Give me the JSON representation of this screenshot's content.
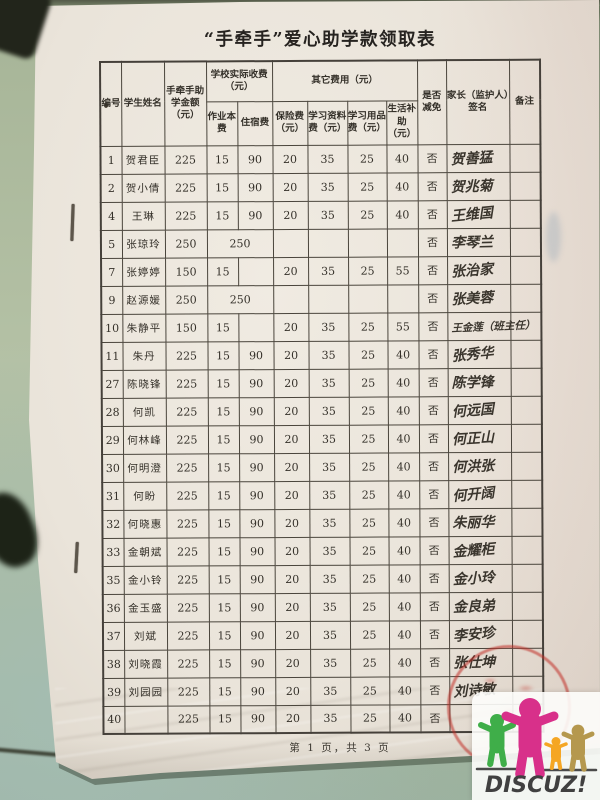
{
  "photo": {
    "title": "“手牵手”爱心助学款领取表",
    "footer": "第 1 页，共 3 页",
    "paper_color": "#eae4da",
    "background_color": "#b4c1a5",
    "stamp_color": "#c12e26",
    "watermark": {
      "text": "DISCUZ!",
      "text_color": "#404040",
      "figure_colors": [
        "#3fae49",
        "#d8308a",
        "#f5a623",
        "#b5984e"
      ]
    }
  },
  "table": {
    "headers": {
      "no": "编号",
      "student_name": "学生姓名",
      "aid_amount": "手牵手助学金额（元）",
      "school_fee_group": "学校实际收费（元）",
      "workbook_fee": "作业本费",
      "lodging_fee": "住宿费",
      "other_fee_group": "其它费用（元）",
      "insurance_fee": "保险费（元）",
      "materials_fee": "学习资料费（元）",
      "supplies_fee": "学习用品费（元）",
      "living_subsidy": "生活补助（元）",
      "waived": "是否减免",
      "guardian_signature": "家长（监护人）签名",
      "remarks": "备注"
    },
    "rows": [
      {
        "no": "1",
        "name": "贺君臣",
        "amount": "225",
        "workbook": "15",
        "lodging": "90",
        "insurance": "20",
        "materials": "35",
        "supplies": "25",
        "living": "40",
        "waived": "否",
        "signature": "贺善猛",
        "remark": ""
      },
      {
        "no": "2",
        "name": "贺小倩",
        "amount": "225",
        "workbook": "15",
        "lodging": "90",
        "insurance": "20",
        "materials": "35",
        "supplies": "25",
        "living": "40",
        "waived": "否",
        "signature": "贺兆菊",
        "remark": ""
      },
      {
        "no": "4",
        "name": "王琳",
        "amount": "225",
        "workbook": "15",
        "lodging": "90",
        "insurance": "20",
        "materials": "35",
        "supplies": "25",
        "living": "40",
        "waived": "否",
        "signature": "王维国",
        "remark": ""
      },
      {
        "no": "5",
        "name": "张琼玲",
        "amount": "250",
        "school_fee_merged": true,
        "school_fee": "250",
        "insurance": "",
        "materials": "",
        "supplies": "",
        "living": "",
        "waived": "否",
        "signature": "李琴兰",
        "remark": ""
      },
      {
        "no": "7",
        "name": "张婷婷",
        "amount": "150",
        "workbook": "15",
        "lodging": "",
        "insurance": "20",
        "materials": "35",
        "supplies": "25",
        "living": "55",
        "waived": "否",
        "signature": "张治家",
        "remark": ""
      },
      {
        "no": "9",
        "name": "赵源媛",
        "amount": "250",
        "school_fee_merged": true,
        "school_fee": "250",
        "insurance": "",
        "materials": "",
        "supplies": "",
        "living": "",
        "waived": "否",
        "signature": "张美蓉",
        "remark": ""
      },
      {
        "no": "10",
        "name": "朱静平",
        "amount": "150",
        "workbook": "15",
        "lodging": "",
        "insurance": "20",
        "materials": "35",
        "supplies": "25",
        "living": "55",
        "waived": "否",
        "signature": "王金莲（班主任）",
        "remark": ""
      },
      {
        "no": "11",
        "name": "朱丹",
        "amount": "225",
        "workbook": "15",
        "lodging": "90",
        "insurance": "20",
        "materials": "35",
        "supplies": "25",
        "living": "40",
        "waived": "否",
        "signature": "张秀华",
        "remark": ""
      },
      {
        "no": "27",
        "name": "陈晓锋",
        "amount": "225",
        "workbook": "15",
        "lodging": "90",
        "insurance": "20",
        "materials": "35",
        "supplies": "25",
        "living": "40",
        "waived": "否",
        "signature": "陈学锋",
        "remark": ""
      },
      {
        "no": "28",
        "name": "何凯",
        "amount": "225",
        "workbook": "15",
        "lodging": "90",
        "insurance": "20",
        "materials": "35",
        "supplies": "25",
        "living": "40",
        "waived": "否",
        "signature": "何远国",
        "remark": ""
      },
      {
        "no": "29",
        "name": "何林峰",
        "amount": "225",
        "workbook": "15",
        "lodging": "90",
        "insurance": "20",
        "materials": "35",
        "supplies": "25",
        "living": "40",
        "waived": "否",
        "signature": "何正山",
        "remark": ""
      },
      {
        "no": "30",
        "name": "何明澄",
        "amount": "225",
        "workbook": "15",
        "lodging": "90",
        "insurance": "20",
        "materials": "35",
        "supplies": "25",
        "living": "40",
        "waived": "否",
        "signature": "何洪张",
        "remark": ""
      },
      {
        "no": "31",
        "name": "何盼",
        "amount": "225",
        "workbook": "15",
        "lodging": "90",
        "insurance": "20",
        "materials": "35",
        "supplies": "25",
        "living": "40",
        "waived": "否",
        "signature": "何开阔",
        "remark": ""
      },
      {
        "no": "32",
        "name": "何晓惠",
        "amount": "225",
        "workbook": "15",
        "lodging": "90",
        "insurance": "20",
        "materials": "35",
        "supplies": "25",
        "living": "40",
        "waived": "否",
        "signature": "朱丽华",
        "remark": ""
      },
      {
        "no": "33",
        "name": "金朝斌",
        "amount": "225",
        "workbook": "15",
        "lodging": "90",
        "insurance": "20",
        "materials": "35",
        "supplies": "25",
        "living": "40",
        "waived": "否",
        "signature": "金耀柜",
        "remark": ""
      },
      {
        "no": "35",
        "name": "金小铃",
        "amount": "225",
        "workbook": "15",
        "lodging": "90",
        "insurance": "20",
        "materials": "35",
        "supplies": "25",
        "living": "40",
        "waived": "否",
        "signature": "金小玲",
        "remark": ""
      },
      {
        "no": "36",
        "name": "金玉盛",
        "amount": "225",
        "workbook": "15",
        "lodging": "90",
        "insurance": "20",
        "materials": "35",
        "supplies": "25",
        "living": "40",
        "waived": "否",
        "signature": "金良弟",
        "remark": ""
      },
      {
        "no": "37",
        "name": "刘斌",
        "amount": "225",
        "workbook": "15",
        "lodging": "90",
        "insurance": "20",
        "materials": "35",
        "supplies": "25",
        "living": "40",
        "waived": "否",
        "signature": "李安珍",
        "remark": ""
      },
      {
        "no": "38",
        "name": "刘晓霞",
        "amount": "225",
        "workbook": "15",
        "lodging": "90",
        "insurance": "20",
        "materials": "35",
        "supplies": "25",
        "living": "40",
        "waived": "否",
        "signature": "张仕坤",
        "remark": ""
      },
      {
        "no": "39",
        "name": "刘园园",
        "amount": "225",
        "workbook": "15",
        "lodging": "90",
        "insurance": "20",
        "materials": "35",
        "supplies": "25",
        "living": "40",
        "waived": "否",
        "signature": "刘诗敏",
        "remark": ""
      },
      {
        "no": "40",
        "name": "",
        "amount": "225",
        "workbook": "15",
        "lodging": "90",
        "insurance": "20",
        "materials": "35",
        "supplies": "25",
        "living": "40",
        "waived": "否",
        "signature": "",
        "remark": ""
      }
    ]
  }
}
